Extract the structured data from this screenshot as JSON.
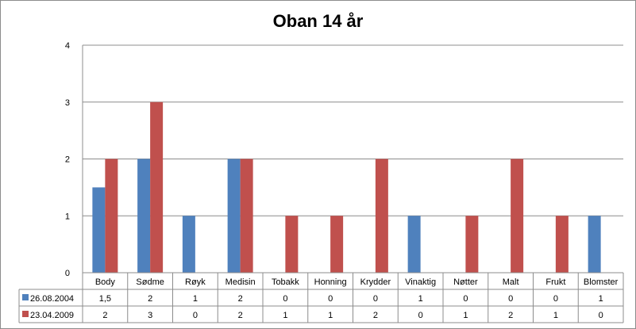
{
  "chart_data": {
    "type": "bar",
    "title": "Oban 14 år",
    "categories": [
      "Body",
      "Sødme",
      "Røyk",
      "Medisin",
      "Tobakk",
      "Honning",
      "Krydder",
      "Vinaktig",
      "Nøtter",
      "Malt",
      "Frukt",
      "Blomster"
    ],
    "series": [
      {
        "name": "26.08.2004",
        "color": "#4f81bd",
        "values": [
          1.5,
          2,
          1,
          2,
          0,
          0,
          0,
          1,
          0,
          0,
          0,
          1
        ],
        "labels": [
          "1,5",
          "2",
          "1",
          "2",
          "0",
          "0",
          "0",
          "1",
          "0",
          "0",
          "0",
          "1"
        ]
      },
      {
        "name": "23.04.2009",
        "color": "#c0504d",
        "values": [
          2,
          3,
          0,
          2,
          1,
          1,
          2,
          0,
          1,
          2,
          1,
          0
        ],
        "labels": [
          "2",
          "3",
          "0",
          "2",
          "1",
          "1",
          "2",
          "0",
          "1",
          "2",
          "1",
          "0"
        ]
      }
    ],
    "ylim": [
      0,
      4
    ],
    "yticks": [
      0,
      1,
      2,
      3,
      4
    ],
    "grid": true,
    "legend": "data-table"
  }
}
